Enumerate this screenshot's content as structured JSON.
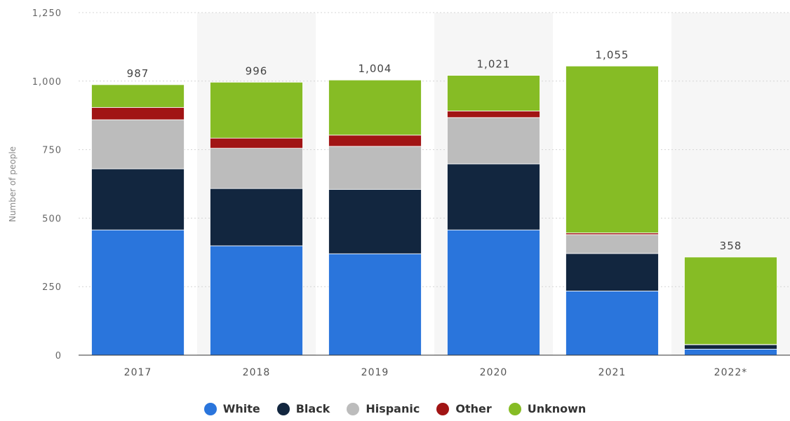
{
  "chart_data": {
    "type": "bar",
    "stacked": true,
    "title": "",
    "xlabel": "",
    "ylabel": "Number of people",
    "ylim": [
      0,
      1250
    ],
    "yticks": [
      0,
      250,
      500,
      750,
      "1,000",
      "1,250"
    ],
    "ytick_labels": [
      "0",
      "250",
      "500",
      "750",
      "1,000",
      "1,250"
    ],
    "categories": [
      "2017",
      "2018",
      "2019",
      "2020",
      "2021",
      "2022*"
    ],
    "totals": [
      987,
      996,
      1004,
      1021,
      1055,
      358
    ],
    "total_labels": [
      "987",
      "996",
      "1,004",
      "1,021",
      "1,055",
      "358"
    ],
    "series": [
      {
        "name": "White",
        "color": "#2a75dc",
        "values": [
          457,
          399,
          370,
          457,
          234,
          22
        ]
      },
      {
        "name": "Black",
        "color": "#12263f",
        "values": [
          223,
          209,
          235,
          241,
          137,
          16
        ]
      },
      {
        "name": "Hispanic",
        "color": "#bcbcbc",
        "values": [
          179,
          147,
          157,
          169,
          69,
          1
        ]
      },
      {
        "name": "Other",
        "color": "#a11414",
        "values": [
          45,
          37,
          41,
          24,
          6,
          0
        ]
      },
      {
        "name": "Unknown",
        "color": "#86bc25",
        "values": [
          83,
          204,
          201,
          130,
          609,
          319
        ]
      }
    ],
    "grid": true,
    "legend_position": "bottom"
  }
}
